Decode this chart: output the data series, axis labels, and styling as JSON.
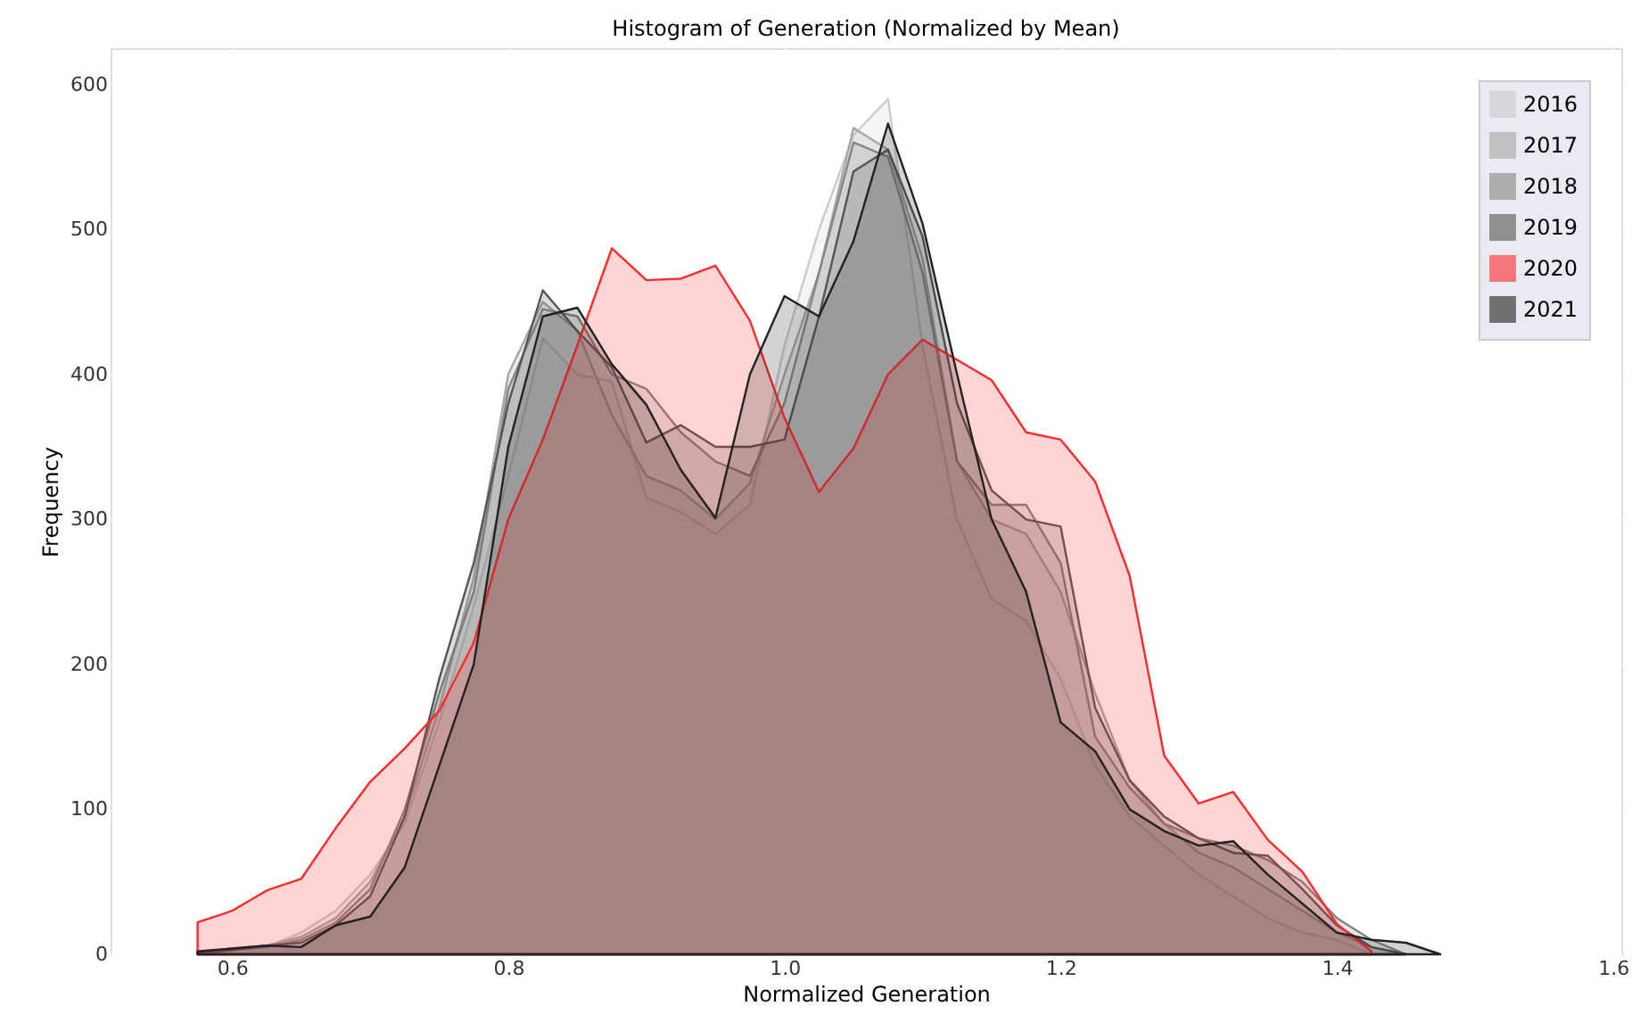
{
  "chart_data": {
    "type": "area",
    "title": "Histogram of Generation (Normalized by Mean)",
    "xlabel": "Normalized Generation",
    "ylabel": "Frequency",
    "xlim": [
      0.512,
      1.606
    ],
    "ylim": [
      0,
      625
    ],
    "xticks": [
      {
        "value": 0.6,
        "label": "0.6"
      },
      {
        "value": 0.8,
        "label": "0.8"
      },
      {
        "value": 1.0,
        "label": "1.0"
      },
      {
        "value": 1.2,
        "label": "1.2"
      },
      {
        "value": 1.4,
        "label": "1.4"
      },
      {
        "value": 1.6,
        "label": "1.6"
      }
    ],
    "yticks": [
      0,
      100,
      200,
      300,
      400,
      500,
      600
    ],
    "grid": true,
    "legend": "top right",
    "series": [
      {
        "name": "2016",
        "color": "#cccccc",
        "x": [
          0.575,
          0.6,
          0.625,
          0.65,
          0.675,
          0.7,
          0.725,
          0.75,
          0.775,
          0.8,
          0.825,
          0.85,
          0.875,
          0.9,
          0.925,
          0.95,
          0.975,
          1.0,
          1.025,
          1.05,
          1.075,
          1.1,
          1.125,
          1.15,
          1.175,
          1.2,
          1.225,
          1.25,
          1.275,
          1.3,
          1.325,
          1.35,
          1.375,
          1.4,
          1.425
        ],
        "values": [
          0,
          3,
          5,
          15,
          30,
          55,
          90,
          160,
          240,
          330,
          425,
          400,
          395,
          315,
          305,
          290,
          310,
          420,
          500,
          565,
          590,
          420,
          300,
          245,
          230,
          190,
          130,
          95,
          75,
          55,
          40,
          25,
          15,
          10,
          0
        ]
      },
      {
        "name": "2017",
        "color": "#a6a6a6",
        "x": [
          0.575,
          0.6,
          0.625,
          0.65,
          0.675,
          0.7,
          0.725,
          0.75,
          0.775,
          0.8,
          0.825,
          0.85,
          0.875,
          0.9,
          0.925,
          0.95,
          0.975,
          1.0,
          1.025,
          1.05,
          1.075,
          1.1,
          1.125,
          1.15,
          1.175,
          1.2,
          1.225,
          1.25,
          1.275,
          1.3,
          1.325,
          1.35,
          1.375,
          1.4,
          1.425,
          1.45
        ],
        "values": [
          2,
          4,
          6,
          12,
          25,
          50,
          95,
          170,
          260,
          400,
          450,
          430,
          372,
          330,
          320,
          300,
          325,
          400,
          470,
          570,
          555,
          480,
          340,
          300,
          290,
          250,
          180,
          120,
          90,
          70,
          60,
          45,
          30,
          15,
          5,
          0
        ]
      },
      {
        "name": "2018",
        "color": "#858585",
        "x": [
          0.575,
          0.6,
          0.625,
          0.65,
          0.675,
          0.7,
          0.725,
          0.75,
          0.775,
          0.8,
          0.825,
          0.85,
          0.875,
          0.9,
          0.925,
          0.95,
          0.975,
          1.0,
          1.025,
          1.05,
          1.075,
          1.1,
          1.125,
          1.15,
          1.175,
          1.2,
          1.225,
          1.25,
          1.275,
          1.3,
          1.325,
          1.35,
          1.375,
          1.4,
          1.425,
          1.45
        ],
        "values": [
          0,
          3,
          5,
          10,
          22,
          45,
          100,
          180,
          250,
          390,
          445,
          440,
          400,
          390,
          360,
          340,
          330,
          380,
          470,
          560,
          550,
          470,
          340,
          310,
          310,
          270,
          150,
          115,
          90,
          80,
          75,
          65,
          50,
          25,
          10,
          0
        ]
      },
      {
        "name": "2019",
        "color": "#555555",
        "x": [
          0.575,
          0.6,
          0.625,
          0.65,
          0.675,
          0.7,
          0.725,
          0.75,
          0.775,
          0.8,
          0.825,
          0.85,
          0.875,
          0.9,
          0.925,
          0.95,
          0.975,
          1.0,
          1.025,
          1.05,
          1.075,
          1.1,
          1.125,
          1.15,
          1.175,
          1.2,
          1.225,
          1.25,
          1.275,
          1.3,
          1.325,
          1.35,
          1.375,
          1.4,
          1.425,
          1.45
        ],
        "values": [
          1,
          3,
          6,
          8,
          20,
          40,
          95,
          190,
          270,
          380,
          458,
          430,
          405,
          353,
          365,
          350,
          350,
          355,
          440,
          540,
          555,
          495,
          380,
          320,
          300,
          295,
          170,
          120,
          95,
          80,
          70,
          68,
          45,
          20,
          5,
          0
        ]
      },
      {
        "name": "2020",
        "color": "#ff2a2a",
        "x": [
          0.575,
          0.6,
          0.625,
          0.65,
          0.675,
          0.7,
          0.725,
          0.75,
          0.775,
          0.8,
          0.825,
          0.85,
          0.875,
          0.9,
          0.925,
          0.95,
          0.975,
          1.0,
          1.025,
          1.05,
          1.075,
          1.1,
          1.125,
          1.15,
          1.175,
          1.2,
          1.225,
          1.25,
          1.275,
          1.3,
          1.325,
          1.35,
          1.375,
          1.4,
          1.425
        ],
        "values": [
          22,
          30,
          44,
          52,
          87,
          119,
          142,
          168,
          215,
          300,
          355,
          420,
          487,
          465,
          466,
          475,
          437,
          370,
          319,
          349,
          400,
          424,
          410,
          396,
          360,
          355,
          326,
          261,
          137,
          104,
          112,
          79,
          57,
          21,
          2
        ]
      },
      {
        "name": "2021",
        "color": "#222222",
        "x": [
          0.575,
          0.6,
          0.625,
          0.65,
          0.675,
          0.7,
          0.725,
          0.75,
          0.775,
          0.8,
          0.825,
          0.85,
          0.875,
          0.9,
          0.925,
          0.95,
          0.975,
          1.0,
          1.025,
          1.05,
          1.075,
          1.1,
          1.125,
          1.15,
          1.175,
          1.2,
          1.225,
          1.25,
          1.275,
          1.3,
          1.325,
          1.35,
          1.375,
          1.4,
          1.425,
          1.45,
          1.475
        ],
        "values": [
          2,
          4,
          6,
          5,
          20,
          26,
          60,
          130,
          200,
          350,
          440,
          446,
          407,
          379,
          334,
          301,
          400,
          454,
          440,
          492,
          573,
          504,
          400,
          300,
          250,
          160,
          140,
          100,
          85,
          75,
          78,
          55,
          35,
          15,
          10,
          8,
          0
        ]
      }
    ]
  }
}
